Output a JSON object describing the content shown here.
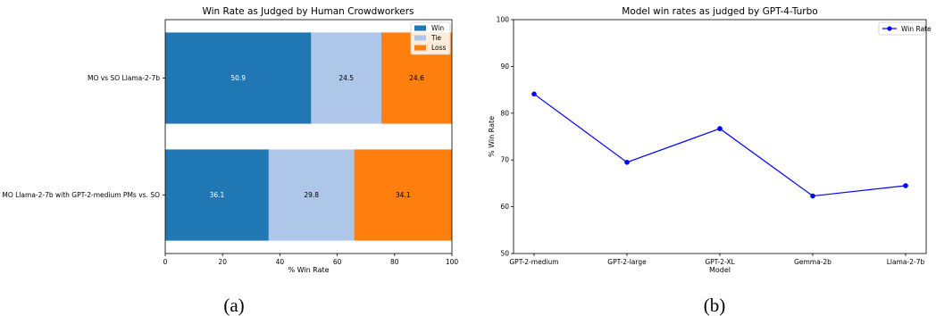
{
  "chart_data": [
    {
      "type": "bar",
      "orientation": "horizontal-stacked",
      "title": "Win Rate as Judged by Human Crowdworkers",
      "xlabel": "% Win Rate",
      "ylabel": "",
      "xlim": [
        0,
        100
      ],
      "xticks": [
        0,
        20,
        40,
        60,
        80,
        100
      ],
      "categories": [
        "MO vs SO Llama-2-7b",
        "MO Llama-2-7b with GPT-2-medium PMs vs. SO"
      ],
      "series": [
        {
          "name": "Win",
          "values": [
            50.9,
            36.1
          ],
          "color": "#1f77b4",
          "label_color": "#ffffff"
        },
        {
          "name": "Tie",
          "values": [
            24.5,
            29.8
          ],
          "color": "#aec7e8",
          "label_color": "#000000"
        },
        {
          "name": "Loss",
          "values": [
            24.6,
            34.1
          ],
          "color": "#ff7f0e",
          "label_color": "#000000"
        }
      ],
      "legend_position": "top-right",
      "grid": false,
      "caption": "(a)"
    },
    {
      "type": "line",
      "title": "Model win rates as judged by GPT-4-Turbo",
      "xlabel": "Model",
      "ylabel": "% Win Rate",
      "ylim": [
        50,
        100
      ],
      "yticks": [
        50,
        60,
        70,
        80,
        90,
        100
      ],
      "categories": [
        "GPT-2-medium",
        "GPT-2-large",
        "GPT-2-XL",
        "Gemma-2b",
        "Llama-2-7b"
      ],
      "series": [
        {
          "name": "Win Rate",
          "values": [
            84.1,
            69.5,
            76.7,
            62.3,
            64.5
          ],
          "color": "#0000ff"
        }
      ],
      "legend_position": "top-right",
      "grid": false,
      "caption": "(b)"
    }
  ]
}
